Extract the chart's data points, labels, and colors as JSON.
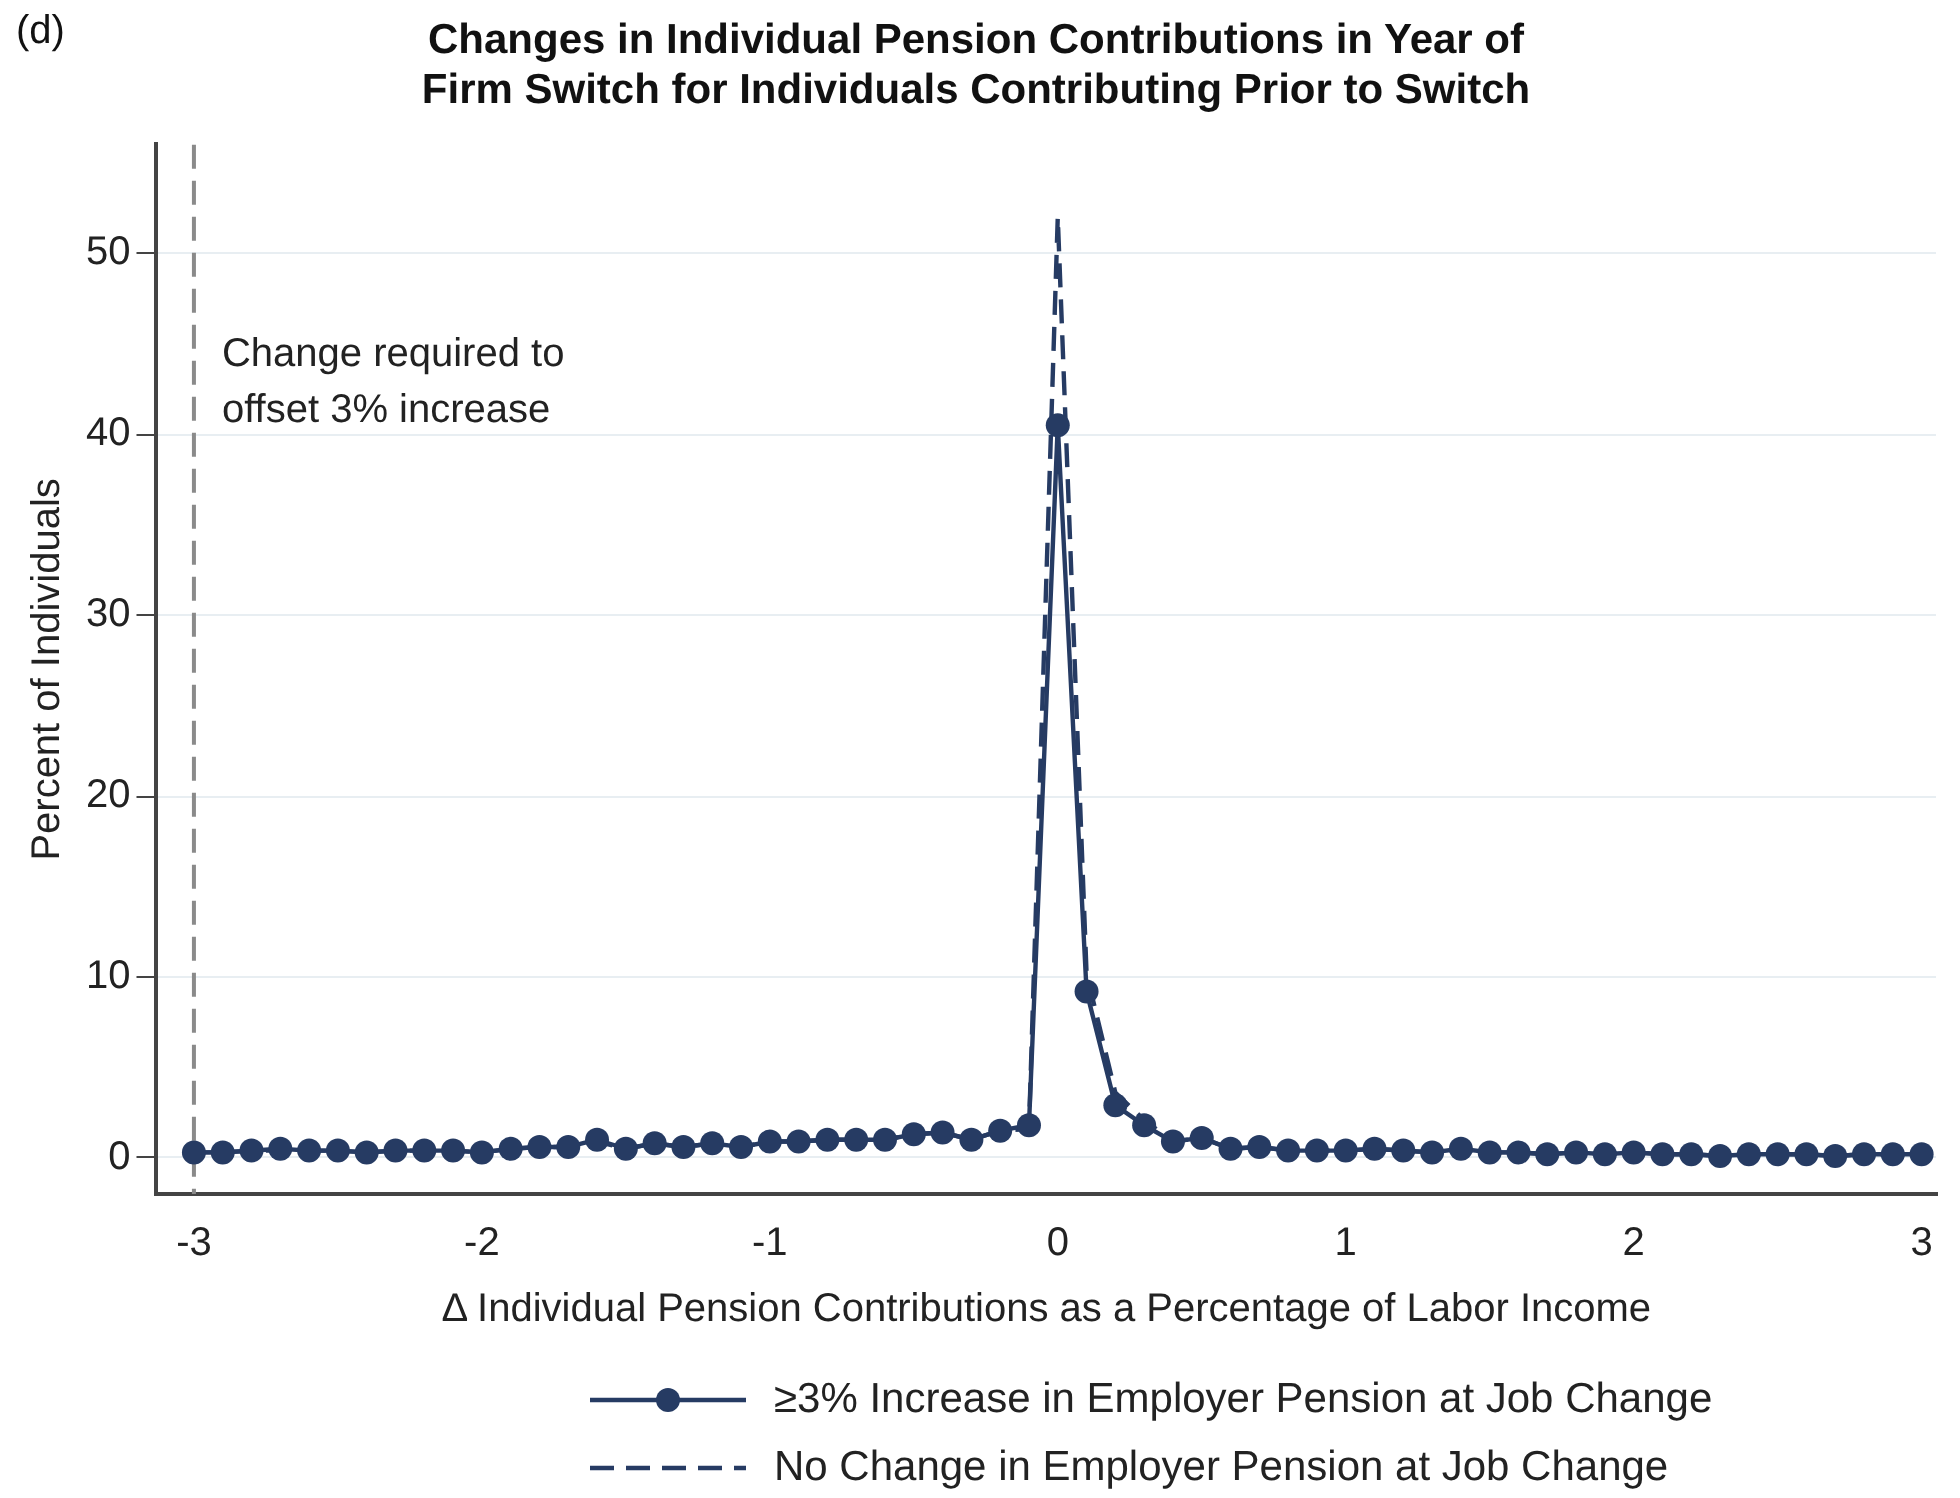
{
  "chart_data": {
    "type": "line",
    "title": "Changes in Individual Pension Contributions in Year of\nFirm Switch for Individuals Contributing Prior to Switch",
    "xlabel": "Δ Individual Pension Contributions as a Percentage of Labor Income",
    "ylabel": "Percent of Individuals",
    "annotations": [
      "(d)"
    ],
    "x": [
      -3,
      -2.9,
      -2.8,
      -2.7,
      -2.6,
      -2.5,
      -2.4,
      -2.3,
      -2.2,
      -2.1,
      -2,
      -1.9,
      -1.8,
      -1.7,
      -1.6,
      -1.5,
      -1.4,
      -1.3,
      -1.2,
      -1.1,
      -1,
      -0.9,
      -0.8,
      -0.7,
      -0.6,
      -0.5,
      -0.4,
      -0.3,
      -0.2,
      -0.1,
      0,
      0.1,
      0.2,
      0.3,
      0.4,
      0.5,
      0.6,
      0.7,
      0.8,
      0.9,
      1,
      1.1,
      1.2,
      1.3,
      1.4,
      1.5,
      1.6,
      1.7,
      1.8,
      1.9,
      2,
      2.1,
      2.2,
      2.3,
      2.4,
      2.5,
      2.6,
      2.7,
      2.8,
      2.9,
      3
    ],
    "series": [
      {
        "name": "≥3% Increase in Employer Pension at Job Change",
        "color": "#263b63",
        "marker": "circle",
        "line_style": "solid",
        "values": [
          0.3,
          0.3,
          0.4,
          0.5,
          0.4,
          0.4,
          0.3,
          0.4,
          0.4,
          0.4,
          0.3,
          0.5,
          0.6,
          0.6,
          1.0,
          0.5,
          0.8,
          0.6,
          0.8,
          0.6,
          0.9,
          0.9,
          1.0,
          1.0,
          1.0,
          1.3,
          1.4,
          1.0,
          1.5,
          1.8,
          40.5,
          9.2,
          2.9,
          1.8,
          0.9,
          1.1,
          0.5,
          0.6,
          0.4,
          0.4,
          0.4,
          0.5,
          0.4,
          0.3,
          0.5,
          0.3,
          0.3,
          0.2,
          0.3,
          0.2,
          0.3,
          0.2,
          0.2,
          0.1,
          0.2,
          0.2,
          0.2,
          0.1,
          0.2,
          0.2,
          0.2
        ]
      },
      {
        "name": "No Change in Employer Pension at Job Change",
        "color": "#263b63",
        "marker": "none",
        "line_style": "dashed",
        "values": [
          0.3,
          0.3,
          0.4,
          0.4,
          0.4,
          0.4,
          0.3,
          0.4,
          0.4,
          0.4,
          0.3,
          0.5,
          0.6,
          0.6,
          0.9,
          0.5,
          0.8,
          0.6,
          0.8,
          0.6,
          0.9,
          0.9,
          1.0,
          1.0,
          1.0,
          1.3,
          1.4,
          1.0,
          1.5,
          1.6,
          52,
          10.2,
          3.6,
          2.1,
          0.9,
          1.1,
          0.5,
          0.6,
          0.4,
          0.4,
          0.4,
          0.5,
          0.4,
          0.3,
          0.5,
          0.3,
          0.3,
          0.2,
          0.3,
          0.2,
          0.3,
          0.2,
          0.2,
          0.1,
          0.2,
          0.2,
          0.2,
          0.1,
          0.2,
          0.2,
          0.2
        ]
      }
    ],
    "xlim": [
      -3.13,
      3.05
    ],
    "xticks": [
      -3,
      -2,
      -1,
      0,
      1,
      2,
      3
    ],
    "ylim": [
      -2,
      56
    ],
    "yticks": [
      0,
      10,
      20,
      30,
      40,
      50
    ],
    "grid": "y",
    "legend": "bottom",
    "ref_lines": [
      {
        "axis": "x",
        "value": -3,
        "label": "Change required to offset 3% increase",
        "color": "#8a8a8a",
        "line_style": "dashed"
      }
    ]
  }
}
